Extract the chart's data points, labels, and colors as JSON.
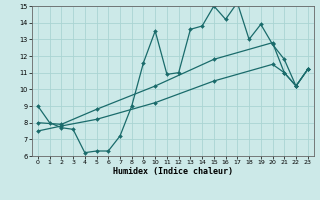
{
  "xlabel": "Humidex (Indice chaleur)",
  "xlim": [
    -0.5,
    23.5
  ],
  "ylim": [
    6,
    15
  ],
  "xticks": [
    0,
    1,
    2,
    3,
    4,
    5,
    6,
    7,
    8,
    9,
    10,
    11,
    12,
    13,
    14,
    15,
    16,
    17,
    18,
    19,
    20,
    21,
    22,
    23
  ],
  "yticks": [
    6,
    7,
    8,
    9,
    10,
    11,
    12,
    13,
    14,
    15
  ],
  "bg_color": "#cce9e8",
  "line_color": "#1a6b6b",
  "grid_color": "#aad4d3",
  "line1_x": [
    0,
    1,
    2,
    3,
    4,
    5,
    6,
    7,
    8,
    9,
    10,
    11,
    12,
    13,
    14,
    15,
    16,
    17,
    18,
    19,
    20,
    21,
    22,
    23
  ],
  "line1_y": [
    9.0,
    8.0,
    7.7,
    7.6,
    6.2,
    6.3,
    6.3,
    7.2,
    9.0,
    11.6,
    13.5,
    10.9,
    11.0,
    13.6,
    13.8,
    15.0,
    14.2,
    15.2,
    13.0,
    13.9,
    12.7,
    11.8,
    10.2,
    11.2
  ],
  "line2_x": [
    0,
    2,
    5,
    10,
    15,
    20,
    21,
    22,
    23
  ],
  "line2_y": [
    8.0,
    7.9,
    8.8,
    10.2,
    11.8,
    12.8,
    11.0,
    10.2,
    11.2
  ],
  "line3_x": [
    0,
    2,
    5,
    10,
    15,
    20,
    21,
    22,
    23
  ],
  "line3_y": [
    7.5,
    7.8,
    8.2,
    9.2,
    10.5,
    11.5,
    11.0,
    10.2,
    11.2
  ]
}
